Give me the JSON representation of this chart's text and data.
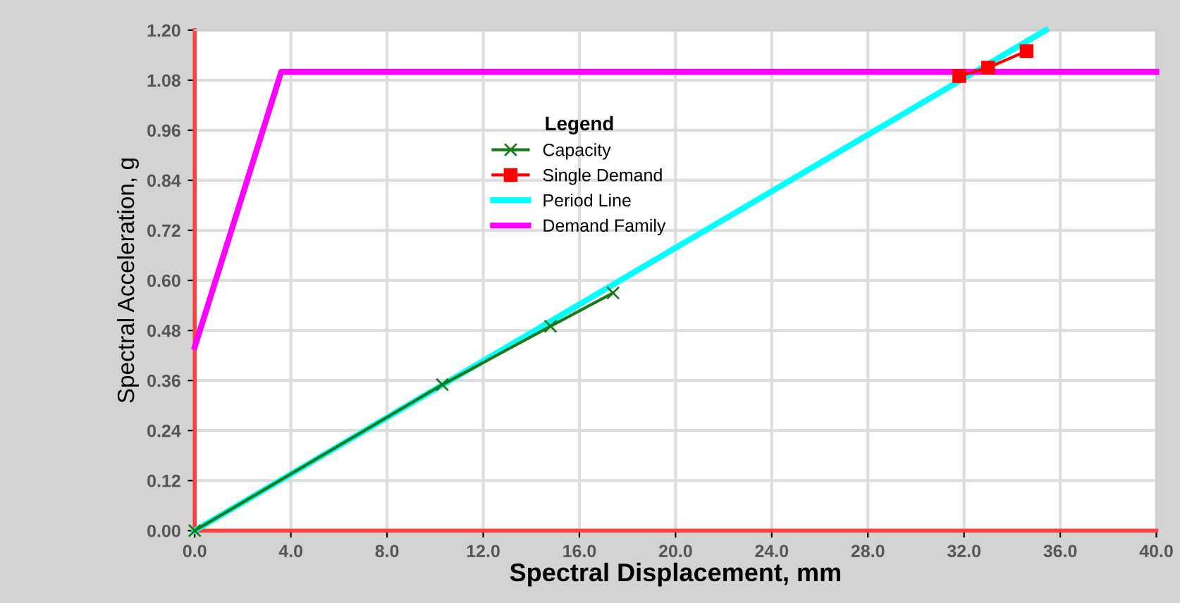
{
  "chart_data": {
    "type": "line",
    "xlabel": "Spectral Displacement, mm",
    "ylabel": "Spectral Acceleration, g",
    "legend_title": "Legend",
    "xlim": [
      0,
      40
    ],
    "ylim": [
      0,
      1.2
    ],
    "xticks": [
      {
        "value": 0,
        "label": "0.0"
      },
      {
        "value": 4,
        "label": "4.0"
      },
      {
        "value": 8,
        "label": "8.0"
      },
      {
        "value": 12,
        "label": "12.0"
      },
      {
        "value": 16,
        "label": "16.0"
      },
      {
        "value": 20,
        "label": "20.0"
      },
      {
        "value": 24,
        "label": "24.0"
      },
      {
        "value": 28,
        "label": "28.0"
      },
      {
        "value": 32,
        "label": "32.0"
      },
      {
        "value": 36,
        "label": "36.0"
      },
      {
        "value": 40,
        "label": "40.0"
      }
    ],
    "yticks": [
      {
        "value": 0,
        "label": "0.00"
      },
      0.12,
      0.24,
      0.36,
      0.48,
      {
        "value": 0.6,
        "label": "0.60"
      },
      0.72,
      0.84,
      0.96,
      1.08,
      {
        "value": 1.2,
        "label": "1.20"
      }
    ],
    "grid": true,
    "legend": "top",
    "series": [
      {
        "name": "Capacity",
        "color": "#1a7a1a",
        "marker": "cross",
        "x": [
          0,
          10.3,
          14.8,
          17.4
        ],
        "values": [
          0,
          0.35,
          0.49,
          0.57
        ]
      },
      {
        "name": "Single Demand",
        "color": "#ff0000",
        "marker": "square",
        "x": [
          31.8,
          33.0,
          34.6
        ],
        "values": [
          1.09,
          1.11,
          1.15
        ]
      },
      {
        "name": "Period Line",
        "color": "#00ffff",
        "marker": "none",
        "x": [
          0,
          35.4
        ],
        "values": [
          0,
          1.2
        ]
      },
      {
        "name": "Demand Family",
        "color": "#ff00ff",
        "marker": "none",
        "x": [
          0,
          3.6,
          40
        ],
        "values": [
          0.44,
          1.1,
          1.1
        ]
      }
    ]
  }
}
